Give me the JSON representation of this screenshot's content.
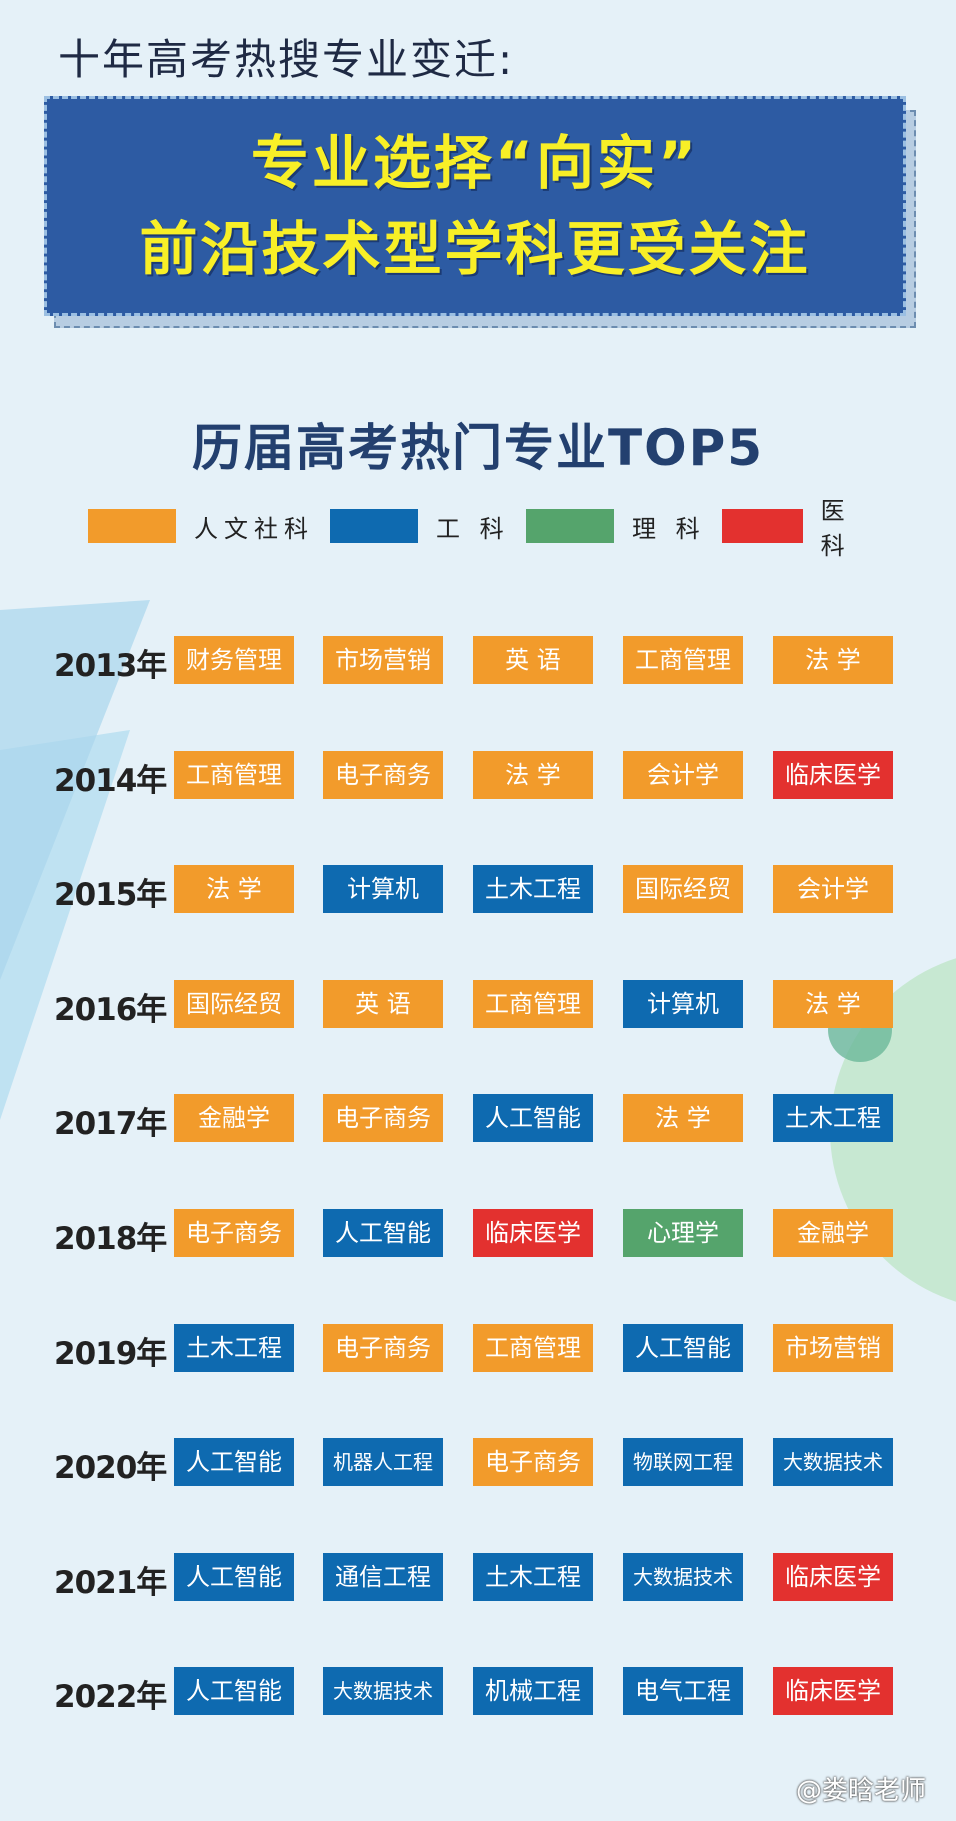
{
  "header": {
    "top_title": "十年高考热搜专业变迁:",
    "banner_line1": "专业选择“向实”",
    "banner_line2": "前沿技术型学科更受关注"
  },
  "chart_title": "历届高考热门专业TOP5",
  "colors": {
    "humanities": "#f29b2b",
    "engineering": "#0e6ab0",
    "science": "#55a46c",
    "medicine": "#e3312f"
  },
  "legend": [
    {
      "label": "人文社科",
      "category": "humanities"
    },
    {
      "label": "工 科",
      "category": "engineering"
    },
    {
      "label": "理 科",
      "category": "science"
    },
    {
      "label": "医 科",
      "category": "medicine"
    }
  ],
  "chart_data": {
    "type": "table",
    "title": "历届高考热门专业TOP5",
    "rows": [
      {
        "year": "2013年",
        "majors": [
          {
            "name": "财务管理",
            "category": "humanities"
          },
          {
            "name": "市场营销",
            "category": "humanities"
          },
          {
            "name": "英 语",
            "category": "humanities"
          },
          {
            "name": "工商管理",
            "category": "humanities"
          },
          {
            "name": "法 学",
            "category": "humanities"
          }
        ]
      },
      {
        "year": "2014年",
        "majors": [
          {
            "name": "工商管理",
            "category": "humanities"
          },
          {
            "name": "电子商务",
            "category": "humanities"
          },
          {
            "name": "法 学",
            "category": "humanities"
          },
          {
            "name": "会计学",
            "category": "humanities"
          },
          {
            "name": "临床医学",
            "category": "medicine"
          }
        ]
      },
      {
        "year": "2015年",
        "majors": [
          {
            "name": "法 学",
            "category": "humanities"
          },
          {
            "name": "计算机",
            "category": "engineering"
          },
          {
            "name": "土木工程",
            "category": "engineering"
          },
          {
            "name": "国际经贸",
            "category": "humanities"
          },
          {
            "name": "会计学",
            "category": "humanities"
          }
        ]
      },
      {
        "year": "2016年",
        "majors": [
          {
            "name": "国际经贸",
            "category": "humanities"
          },
          {
            "name": "英 语",
            "category": "humanities"
          },
          {
            "name": "工商管理",
            "category": "humanities"
          },
          {
            "name": "计算机",
            "category": "engineering"
          },
          {
            "name": "法 学",
            "category": "humanities"
          }
        ]
      },
      {
        "year": "2017年",
        "majors": [
          {
            "name": "金融学",
            "category": "humanities"
          },
          {
            "name": "电子商务",
            "category": "humanities"
          },
          {
            "name": "人工智能",
            "category": "engineering"
          },
          {
            "name": "法 学",
            "category": "humanities"
          },
          {
            "name": "土木工程",
            "category": "engineering"
          }
        ]
      },
      {
        "year": "2018年",
        "majors": [
          {
            "name": "电子商务",
            "category": "humanities"
          },
          {
            "name": "人工智能",
            "category": "engineering"
          },
          {
            "name": "临床医学",
            "category": "medicine"
          },
          {
            "name": "心理学",
            "category": "science"
          },
          {
            "name": "金融学",
            "category": "humanities"
          }
        ]
      },
      {
        "year": "2019年",
        "majors": [
          {
            "name": "土木工程",
            "category": "engineering"
          },
          {
            "name": "电子商务",
            "category": "humanities"
          },
          {
            "name": "工商管理",
            "category": "humanities"
          },
          {
            "name": "人工智能",
            "category": "engineering"
          },
          {
            "name": "市场营销",
            "category": "humanities"
          }
        ]
      },
      {
        "year": "2020年",
        "majors": [
          {
            "name": "人工智能",
            "category": "engineering"
          },
          {
            "name": "机器人工程",
            "category": "engineering"
          },
          {
            "name": "电子商务",
            "category": "humanities"
          },
          {
            "name": "物联网工程",
            "category": "engineering"
          },
          {
            "name": "大数据技术",
            "category": "engineering"
          }
        ]
      },
      {
        "year": "2021年",
        "majors": [
          {
            "name": "人工智能",
            "category": "engineering"
          },
          {
            "name": "通信工程",
            "category": "engineering"
          },
          {
            "name": "土木工程",
            "category": "engineering"
          },
          {
            "name": "大数据技术",
            "category": "engineering"
          },
          {
            "name": "临床医学",
            "category": "medicine"
          }
        ]
      },
      {
        "year": "2022年",
        "majors": [
          {
            "name": "人工智能",
            "category": "engineering"
          },
          {
            "name": "大数据技术",
            "category": "engineering"
          },
          {
            "name": "机械工程",
            "category": "engineering"
          },
          {
            "name": "电气工程",
            "category": "engineering"
          },
          {
            "name": "临床医学",
            "category": "medicine"
          }
        ]
      }
    ]
  },
  "watermark": "@娄晗老师"
}
